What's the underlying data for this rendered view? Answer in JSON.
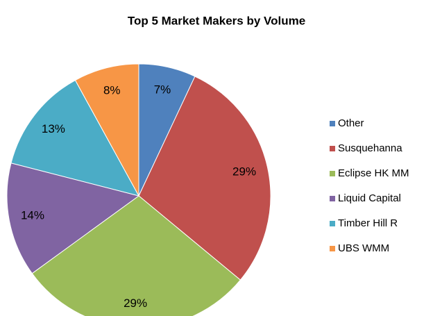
{
  "chart_data": {
    "type": "pie",
    "title": "Top 5 Market Makers by Volume",
    "categories": [
      "Other",
      "Susquehanna",
      "Eclipse HK MM",
      "Liquid Capital",
      "Timber Hill R",
      "UBS WMM"
    ],
    "values": [
      7,
      29,
      29,
      14,
      13,
      8
    ],
    "value_labels": [
      "7%",
      "29%",
      "29%",
      "14%",
      "13%",
      "8%"
    ],
    "colors": [
      "#4f81bd",
      "#c0504d",
      "#9bbb59",
      "#8064a2",
      "#4bacc6",
      "#f79646"
    ],
    "legend": "right"
  }
}
